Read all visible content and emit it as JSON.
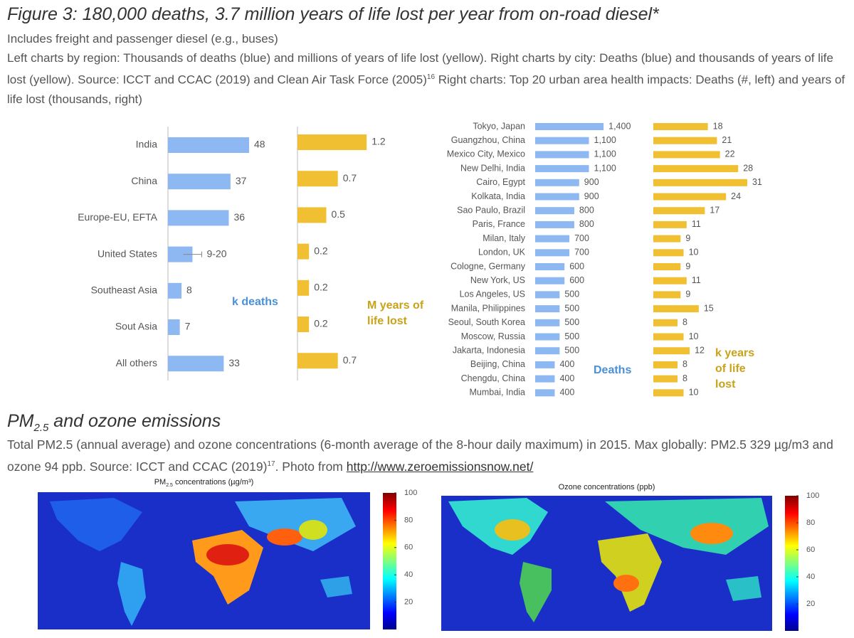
{
  "header": {
    "title": "Figure 3: 180,000 deaths, 3.7 million years of life lost per year from on-road diesel*",
    "subtitle": "Includes freight and passenger diesel (e.g., buses)",
    "note": "Left charts by region: Thousands of deaths (blue) and millions of years of life lost (yellow). Right charts by city: Deaths (blue) and thousands of years of life lost (yellow). Source: ICCT and CCAC (2019) and Clean Air Task Force (2005)",
    "note_sup": "16",
    "note_tail": " Right charts: Top 20 urban area health impacts: Deaths (#, left) and years of life lost (thousands, right)"
  },
  "chart_data": [
    {
      "type": "bar",
      "orientation": "horizontal",
      "annotation": "k deaths",
      "color": "#8db8f2",
      "categories": [
        "India",
        "China",
        "Europe-EU, EFTA",
        "United States",
        "Southeast Asia",
        "Sout Asia",
        "All others"
      ],
      "values": [
        48,
        37,
        36,
        14.5,
        8,
        7,
        33
      ],
      "errors": [
        null,
        null,
        null,
        5.5,
        null,
        null,
        null
      ],
      "value_labels": [
        "48",
        "37",
        "36",
        "9-20",
        "8",
        "7",
        "33"
      ],
      "xlim": [
        0,
        60
      ]
    },
    {
      "type": "bar",
      "orientation": "horizontal",
      "annotation": "M years of life lost",
      "color": "#f0c032",
      "values": [
        1.2,
        0.7,
        0.5,
        0.2,
        0.2,
        0.2,
        0.7
      ],
      "xlim": [
        0,
        1.5
      ]
    },
    {
      "type": "bar",
      "orientation": "horizontal",
      "annotation": "Deaths",
      "color": "#8db8f2",
      "categories": [
        "Tokyo, Japan",
        "Guangzhou, China",
        "Mexico City, Mexico",
        "New Delhi, India",
        "Cairo, Egypt",
        "Kolkata, India",
        "Sao Paulo, Brazil",
        "Paris, France",
        "Milan, Italy",
        "London, UK",
        "Cologne, Germany",
        "New York, US",
        "Los Angeles, US",
        "Manila, Philippines",
        "Seoul, South Korea",
        "Moscow, Russia",
        "Jakarta, Indonesia",
        "Beijing, China",
        "Chengdu, China",
        "Mumbai, India"
      ],
      "values": [
        1400,
        1100,
        1100,
        1100,
        900,
        900,
        800,
        800,
        700,
        700,
        600,
        600,
        500,
        500,
        500,
        500,
        500,
        400,
        400,
        400
      ],
      "value_labels": [
        "1,400",
        "1,100",
        "1,100",
        "1,100",
        "900",
        "900",
        "800",
        "800",
        "700",
        "700",
        "600",
        "600",
        "500",
        "500",
        "500",
        "500",
        "500",
        "400",
        "400",
        "400"
      ],
      "xlim": [
        0,
        1500
      ]
    },
    {
      "type": "bar",
      "orientation": "horizontal",
      "annotation": "k years of life lost",
      "color": "#f0c032",
      "values": [
        18,
        21,
        22,
        28,
        31,
        24,
        17,
        11,
        9,
        10,
        9,
        11,
        9,
        15,
        8,
        10,
        12,
        8,
        8,
        10
      ],
      "xlim": [
        0,
        35
      ]
    }
  ],
  "section": {
    "heading": "PM",
    "heading_sub": "2.5",
    "heading_tail": " and ozone emissions",
    "text": "Total PM2.5 (annual average) and ozone concentrations (6-month average of the 8-hour daily maximum) in 2015. Max globally: PM2.5 329 µg/m3 and ozone 94 ppb. Source: ICCT and CCAC (2019)",
    "text_sup": "17",
    "text_tail": ". Photo from ",
    "link": "http://www.zeroemissionsnow.net/"
  },
  "maps": [
    {
      "title": "PM",
      "title_sub": "2.5",
      "title_tail": " concentrations (µg/m³)",
      "clim": [
        0,
        100
      ],
      "cticks": [
        20,
        40,
        60,
        80,
        100
      ]
    },
    {
      "title": "Ozone concentrations (ppb)",
      "clim": [
        0,
        100
      ],
      "cticks": [
        20,
        40,
        60,
        80,
        100
      ]
    }
  ]
}
